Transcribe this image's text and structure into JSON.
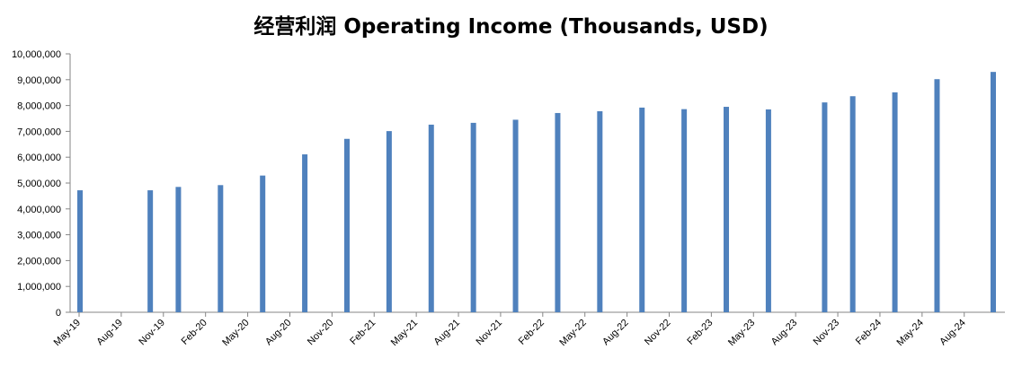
{
  "chart_data": {
    "type": "bar",
    "title": "经营利润 Operating Income (Thousands, USD)",
    "xlabel": "",
    "ylabel": "",
    "ylim": [
      0,
      10000000
    ],
    "y_ticks": [
      "0",
      "1,000,000",
      "2,000,000",
      "3,000,000",
      "4,000,000",
      "5,000,000",
      "6,000,000",
      "7,000,000",
      "8,000,000",
      "9,000,000",
      "10,000,000"
    ],
    "x_tick_labels": [
      "May-19",
      "Aug-19",
      "Nov-19",
      "Feb-20",
      "May-20",
      "Aug-20",
      "Nov-20",
      "Feb-21",
      "May-21",
      "Aug-21",
      "Nov-21",
      "Feb-22",
      "May-22",
      "Aug-22",
      "Nov-22",
      "Feb-23",
      "May-23",
      "Aug-23",
      "Nov-23",
      "Feb-24",
      "May-24",
      "Aug-24"
    ],
    "x_range": [
      "2019-05",
      "2024-10"
    ],
    "bars": [
      {
        "x": "2019-05",
        "value": 4720000
      },
      {
        "x": "2019-10",
        "value": 4720000
      },
      {
        "x": "2019-12",
        "value": 4850000
      },
      {
        "x": "2020-03",
        "value": 4920000
      },
      {
        "x": "2020-06",
        "value": 5290000
      },
      {
        "x": "2020-09",
        "value": 6110000
      },
      {
        "x": "2020-12",
        "value": 6710000
      },
      {
        "x": "2021-03",
        "value": 7010000
      },
      {
        "x": "2021-06",
        "value": 7260000
      },
      {
        "x": "2021-09",
        "value": 7330000
      },
      {
        "x": "2021-12",
        "value": 7450000
      },
      {
        "x": "2022-03",
        "value": 7710000
      },
      {
        "x": "2022-06",
        "value": 7780000
      },
      {
        "x": "2022-09",
        "value": 7920000
      },
      {
        "x": "2022-12",
        "value": 7860000
      },
      {
        "x": "2023-03",
        "value": 7950000
      },
      {
        "x": "2023-06",
        "value": 7850000
      },
      {
        "x": "2023-10",
        "value": 8120000
      },
      {
        "x": "2023-12",
        "value": 8360000
      },
      {
        "x": "2024-03",
        "value": 8510000
      },
      {
        "x": "2024-06",
        "value": 9020000
      },
      {
        "x": "2024-10",
        "value": 9300000
      }
    ],
    "bar_color": "#4f81bd",
    "grid": false,
    "legend": "none"
  }
}
